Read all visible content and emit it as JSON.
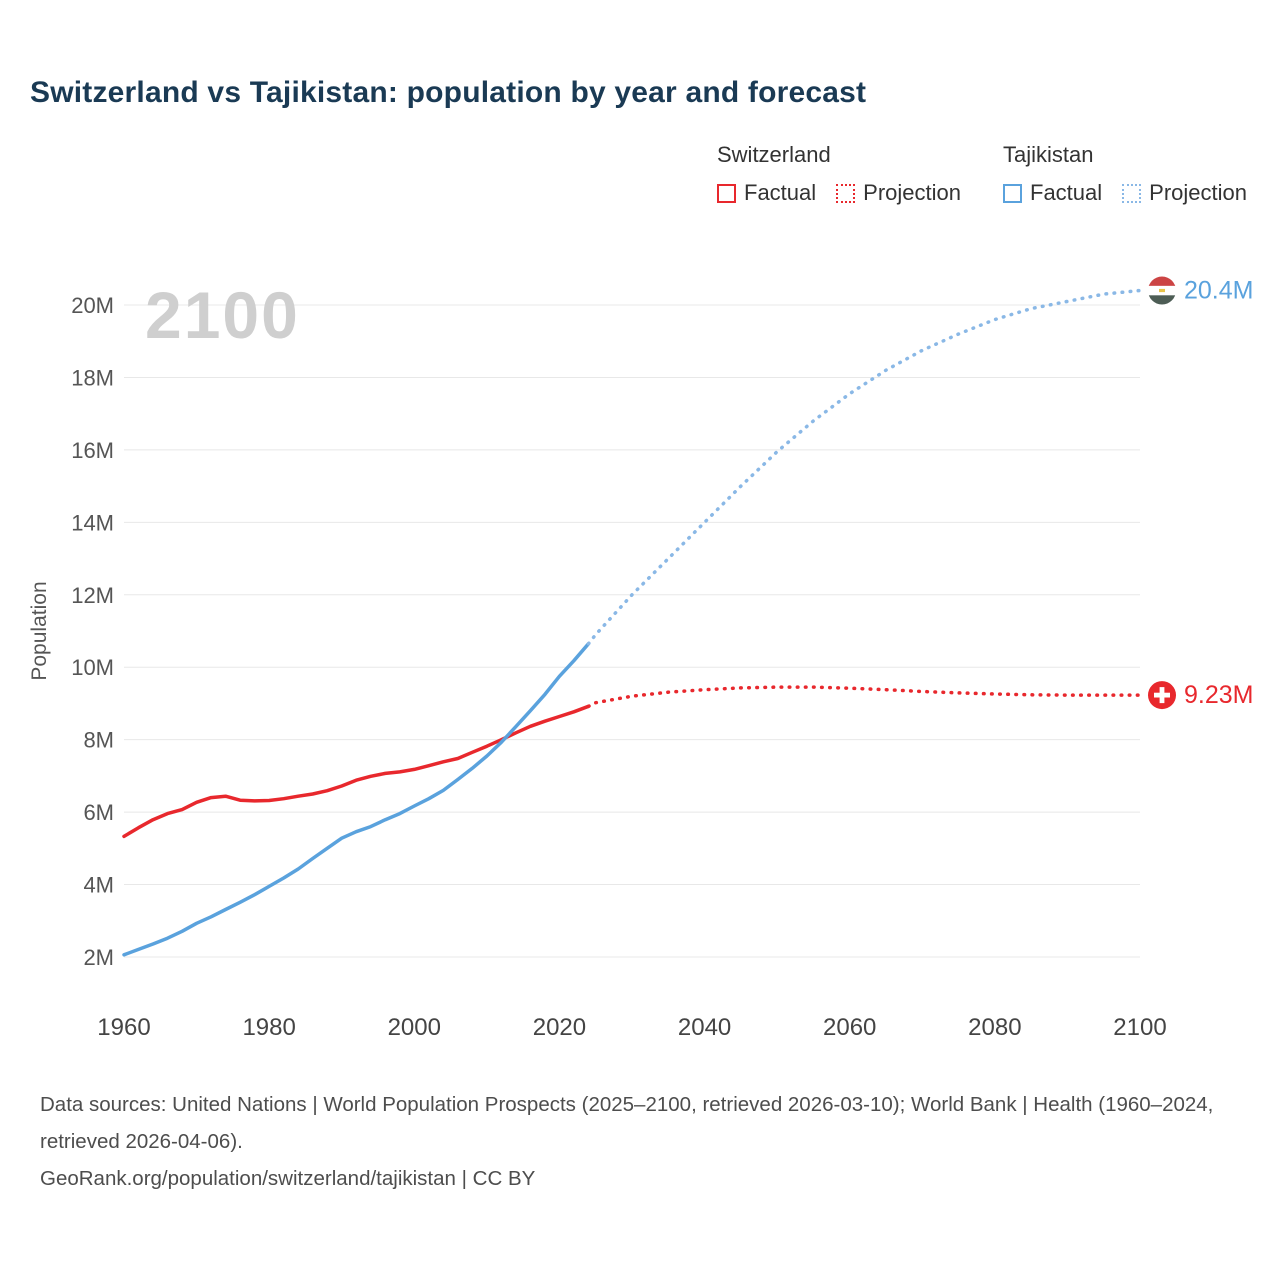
{
  "title": "Switzerland vs Tajikistan: population by year and forecast",
  "watermark": "2100",
  "legend": {
    "groups": [
      {
        "name": "Switzerland",
        "items": [
          {
            "label": "Factual",
            "style": "solid",
            "color": "#e8282d"
          },
          {
            "label": "Projection",
            "style": "dotted",
            "color": "#e8282d"
          }
        ]
      },
      {
        "name": "Tajikistan",
        "items": [
          {
            "label": "Factual",
            "style": "solid",
            "color": "#5aa2dd"
          },
          {
            "label": "Projection",
            "style": "dotted",
            "color": "#8ab8e6"
          }
        ]
      }
    ]
  },
  "footer": {
    "sources": "Data sources: United Nations | World Population Prospects (2025–2100, retrieved 2026-03-10); World Bank | Health (1960–2024, retrieved 2026-04-06).",
    "attribution": "GeoRank.org/population/switzerland/tajikistan | CC BY"
  },
  "chart_data": {
    "type": "line",
    "title": "Switzerland vs Tajikistan: population by year and forecast",
    "xlabel": "",
    "ylabel": "Population",
    "xlim": [
      1960,
      2100
    ],
    "ylim": [
      2000000,
      20400000
    ],
    "grid": "horizontal",
    "legend_position": "top-right",
    "xticks": {
      "values": [
        1960,
        1980,
        2000,
        2020,
        2040,
        2060,
        2080,
        2100
      ],
      "labels": [
        "1960",
        "1980",
        "2000",
        "2020",
        "2040",
        "2060",
        "2080",
        "2100"
      ]
    },
    "yticks": {
      "values": [
        2,
        4,
        6,
        8,
        10,
        12,
        14,
        16,
        18,
        20
      ],
      "labels": [
        "2M",
        "4M",
        "6M",
        "8M",
        "10M",
        "12M",
        "14M",
        "16M",
        "18M",
        "20M"
      ]
    },
    "unit": "millions",
    "series": [
      {
        "name": "Switzerland Factual",
        "color": "#e8282d",
        "style": "solid",
        "points": [
          [
            1960,
            5.33
          ],
          [
            1962,
            5.57
          ],
          [
            1964,
            5.79
          ],
          [
            1966,
            5.96
          ],
          [
            1968,
            6.07
          ],
          [
            1970,
            6.27
          ],
          [
            1972,
            6.4
          ],
          [
            1974,
            6.44
          ],
          [
            1976,
            6.33
          ],
          [
            1978,
            6.31
          ],
          [
            1980,
            6.32
          ],
          [
            1982,
            6.37
          ],
          [
            1984,
            6.44
          ],
          [
            1986,
            6.5
          ],
          [
            1988,
            6.59
          ],
          [
            1990,
            6.72
          ],
          [
            1992,
            6.88
          ],
          [
            1994,
            6.99
          ],
          [
            1996,
            7.07
          ],
          [
            1998,
            7.11
          ],
          [
            2000,
            7.18
          ],
          [
            2002,
            7.28
          ],
          [
            2004,
            7.39
          ],
          [
            2006,
            7.48
          ],
          [
            2008,
            7.65
          ],
          [
            2010,
            7.82
          ],
          [
            2012,
            8.0
          ],
          [
            2014,
            8.19
          ],
          [
            2016,
            8.37
          ],
          [
            2018,
            8.51
          ],
          [
            2020,
            8.64
          ],
          [
            2022,
            8.77
          ],
          [
            2024,
            8.92
          ]
        ]
      },
      {
        "name": "Switzerland Projection",
        "color": "#e8282d",
        "style": "dotted",
        "points": [
          [
            2024,
            8.92
          ],
          [
            2025,
            9.02
          ],
          [
            2030,
            9.2
          ],
          [
            2035,
            9.31
          ],
          [
            2040,
            9.38
          ],
          [
            2045,
            9.43
          ],
          [
            2050,
            9.45
          ],
          [
            2055,
            9.45
          ],
          [
            2060,
            9.42
          ],
          [
            2065,
            9.38
          ],
          [
            2070,
            9.33
          ],
          [
            2075,
            9.29
          ],
          [
            2080,
            9.26
          ],
          [
            2085,
            9.24
          ],
          [
            2090,
            9.23
          ],
          [
            2095,
            9.23
          ],
          [
            2100,
            9.23
          ]
        ]
      },
      {
        "name": "Tajikistan Factual",
        "color": "#5aa2dd",
        "style": "solid",
        "points": [
          [
            1960,
            2.06
          ],
          [
            1962,
            2.21
          ],
          [
            1964,
            2.36
          ],
          [
            1966,
            2.52
          ],
          [
            1968,
            2.71
          ],
          [
            1970,
            2.93
          ],
          [
            1972,
            3.11
          ],
          [
            1974,
            3.31
          ],
          [
            1976,
            3.51
          ],
          [
            1978,
            3.72
          ],
          [
            1980,
            3.95
          ],
          [
            1982,
            4.18
          ],
          [
            1984,
            4.43
          ],
          [
            1986,
            4.72
          ],
          [
            1988,
            5.0
          ],
          [
            1990,
            5.28
          ],
          [
            1992,
            5.46
          ],
          [
            1994,
            5.6
          ],
          [
            1996,
            5.79
          ],
          [
            1998,
            5.96
          ],
          [
            2000,
            6.17
          ],
          [
            2002,
            6.37
          ],
          [
            2004,
            6.6
          ],
          [
            2006,
            6.9
          ],
          [
            2008,
            7.21
          ],
          [
            2010,
            7.55
          ],
          [
            2012,
            7.93
          ],
          [
            2014,
            8.36
          ],
          [
            2016,
            8.8
          ],
          [
            2018,
            9.25
          ],
          [
            2020,
            9.75
          ],
          [
            2022,
            10.18
          ],
          [
            2024,
            10.65
          ]
        ]
      },
      {
        "name": "Tajikistan Projection",
        "color": "#8ab8e6",
        "style": "dotted",
        "points": [
          [
            2024,
            10.65
          ],
          [
            2025,
            10.9
          ],
          [
            2030,
            12.0
          ],
          [
            2035,
            13.0
          ],
          [
            2040,
            14.0
          ],
          [
            2045,
            15.0
          ],
          [
            2050,
            15.95
          ],
          [
            2055,
            16.8
          ],
          [
            2060,
            17.55
          ],
          [
            2065,
            18.2
          ],
          [
            2070,
            18.75
          ],
          [
            2075,
            19.2
          ],
          [
            2080,
            19.6
          ],
          [
            2085,
            19.9
          ],
          [
            2090,
            20.1
          ],
          [
            2095,
            20.3
          ],
          [
            2100,
            20.4
          ]
        ]
      }
    ],
    "end_labels": [
      {
        "text": "20.4M",
        "color": "#5aa2dd",
        "flag": "tajikistan",
        "year": 2100,
        "value": 20.4
      },
      {
        "text": "9.23M",
        "color": "#e8282d",
        "flag": "switzerland",
        "year": 2100,
        "value": 9.23
      }
    ],
    "colors": {
      "switzerland": "#e8282d",
      "tajikistan_factual": "#5aa2dd",
      "tajikistan_projection": "#8ab8e6",
      "grid": "#e8e8e8",
      "watermark": "#cfcfcf",
      "axis_text": "#555555"
    }
  }
}
